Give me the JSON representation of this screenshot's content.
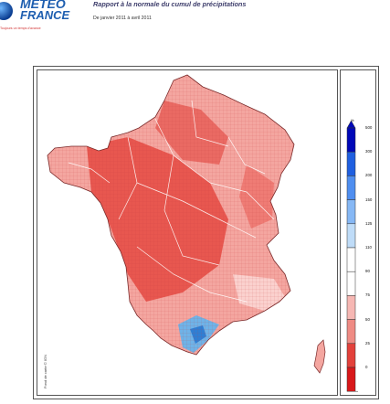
{
  "header": {
    "logo_line1": "METEO",
    "logo_line2": "FRANCE",
    "logo_tagline": "Toujours un temps d'avance",
    "title": "Rapport à la normale du cumul de précipitations",
    "period": "De janvier 2011 à avril 2011"
  },
  "map": {
    "credit": "Fond de carte © IGN",
    "region": "France métropolitaine et Corse",
    "anomaly_color": "#e8574f",
    "normal_color": "#f4a6a0",
    "wet_color": "#6fb3e8"
  },
  "legend": {
    "unit": "%",
    "levels": [
      {
        "label": "500",
        "color": "#0008b8"
      },
      {
        "label": "300",
        "color": "#1f5fe0"
      },
      {
        "label": "200",
        "color": "#4f8ef0"
      },
      {
        "label": "150",
        "color": "#86b8f5"
      },
      {
        "label": "125",
        "color": "#bfdcf8"
      },
      {
        "label": "110",
        "color": "#ffffff"
      },
      {
        "label": "90",
        "color": "#ffffff"
      },
      {
        "label": "75",
        "color": "#f6b7b3"
      },
      {
        "label": "50",
        "color": "#ef8b84"
      },
      {
        "label": "25",
        "color": "#e3413b"
      },
      {
        "label": "0",
        "color": "#d8181a"
      }
    ]
  }
}
